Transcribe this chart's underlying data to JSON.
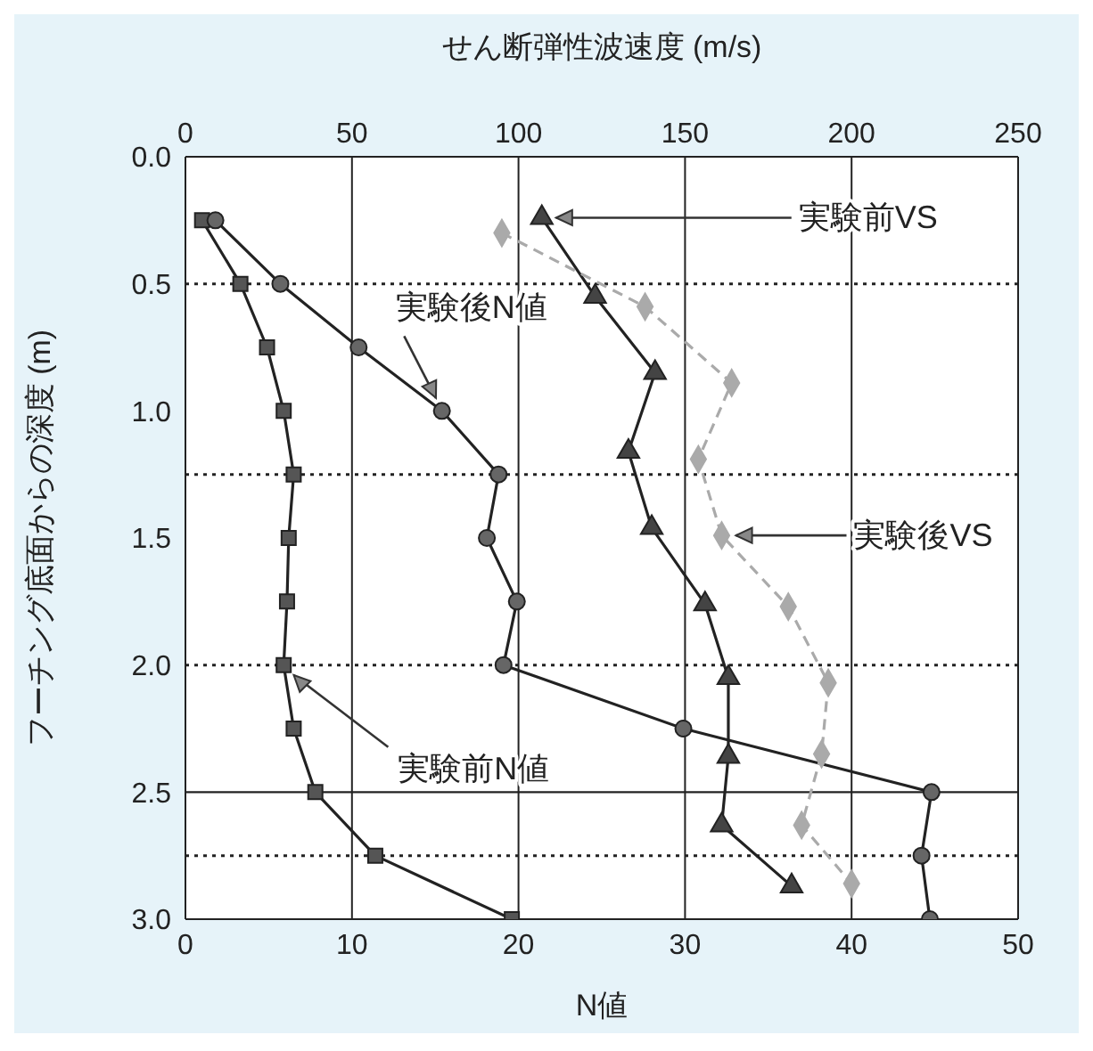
{
  "chart_data": {
    "type": "line",
    "xlabel": "N値",
    "x2label": "せん断弾性波速度 (m/s)",
    "ylabel": "フーチング底面からの深度 (m)",
    "xlim": [
      0,
      50
    ],
    "xticks": [
      0,
      10,
      20,
      30,
      40,
      50
    ],
    "x2lim": [
      0,
      250
    ],
    "x2ticks": [
      0,
      50,
      100,
      150,
      200,
      250
    ],
    "ylim": [
      3.0,
      0.0
    ],
    "yticks": [
      {
        "value": 0,
        "label": "0.0"
      },
      {
        "value": 0.5,
        "label": "0.5"
      },
      {
        "value": 1,
        "label": "1.0"
      },
      {
        "value": 1.5,
        "label": "1.5"
      },
      {
        "value": 2,
        "label": "2.0"
      },
      {
        "value": 2.5,
        "label": "2.5"
      },
      {
        "value": 3,
        "label": "3.0"
      }
    ],
    "grid": "x",
    "ref_lines": [
      {
        "axis": "y",
        "value": 0.5,
        "line_style": "dotted"
      },
      {
        "axis": "y",
        "value": 1.25,
        "line_style": "dotted"
      },
      {
        "axis": "y",
        "value": 2.0,
        "line_style": "dotted"
      },
      {
        "axis": "y",
        "value": 2.5,
        "line_style": "solid"
      },
      {
        "axis": "y",
        "value": 2.75,
        "line_style": "dotted"
      }
    ],
    "series": [
      {
        "name": "実験前N値",
        "color": "#555555",
        "marker": "square",
        "line_style": "solid",
        "x": [
          1.0,
          3.3,
          4.9,
          5.9,
          6.5,
          6.2,
          6.1,
          5.9,
          6.5,
          7.8,
          11.4,
          19.6
        ],
        "values": [
          0.25,
          0.5,
          0.75,
          1.0,
          1.25,
          1.5,
          1.75,
          2.0,
          2.25,
          2.5,
          2.75,
          3.0
        ]
      },
      {
        "name": "実験後N値",
        "color": "#666666",
        "marker": "circle",
        "line_style": "solid",
        "x": [
          1.8,
          5.7,
          10.4,
          15.4,
          18.8,
          18.1,
          19.9,
          19.1,
          29.9,
          44.8,
          44.2,
          44.7
        ],
        "values": [
          0.25,
          0.5,
          0.75,
          1.0,
          1.25,
          1.5,
          1.75,
          2.0,
          2.25,
          2.5,
          2.75,
          3.0
        ]
      },
      {
        "name": "実験前VS",
        "color": "#444444",
        "marker": "triangle",
        "line_style": "solid",
        "axis": "x2",
        "x": [
          107,
          123,
          141,
          133,
          140,
          156,
          163,
          163,
          161,
          182
        ],
        "values": [
          0.24,
          0.55,
          0.85,
          1.16,
          1.46,
          1.76,
          2.05,
          2.36,
          2.63,
          2.87
        ]
      },
      {
        "name": "実験後VS",
        "color": "#aaaaaa",
        "marker": "diamond",
        "line_style": "dashed",
        "axis": "x2",
        "x": [
          95,
          138,
          164,
          154,
          161,
          181,
          193,
          191,
          185,
          200
        ],
        "values": [
          0.3,
          0.59,
          0.89,
          1.19,
          1.49,
          1.77,
          2.07,
          2.35,
          2.63,
          2.86
        ]
      }
    ]
  }
}
